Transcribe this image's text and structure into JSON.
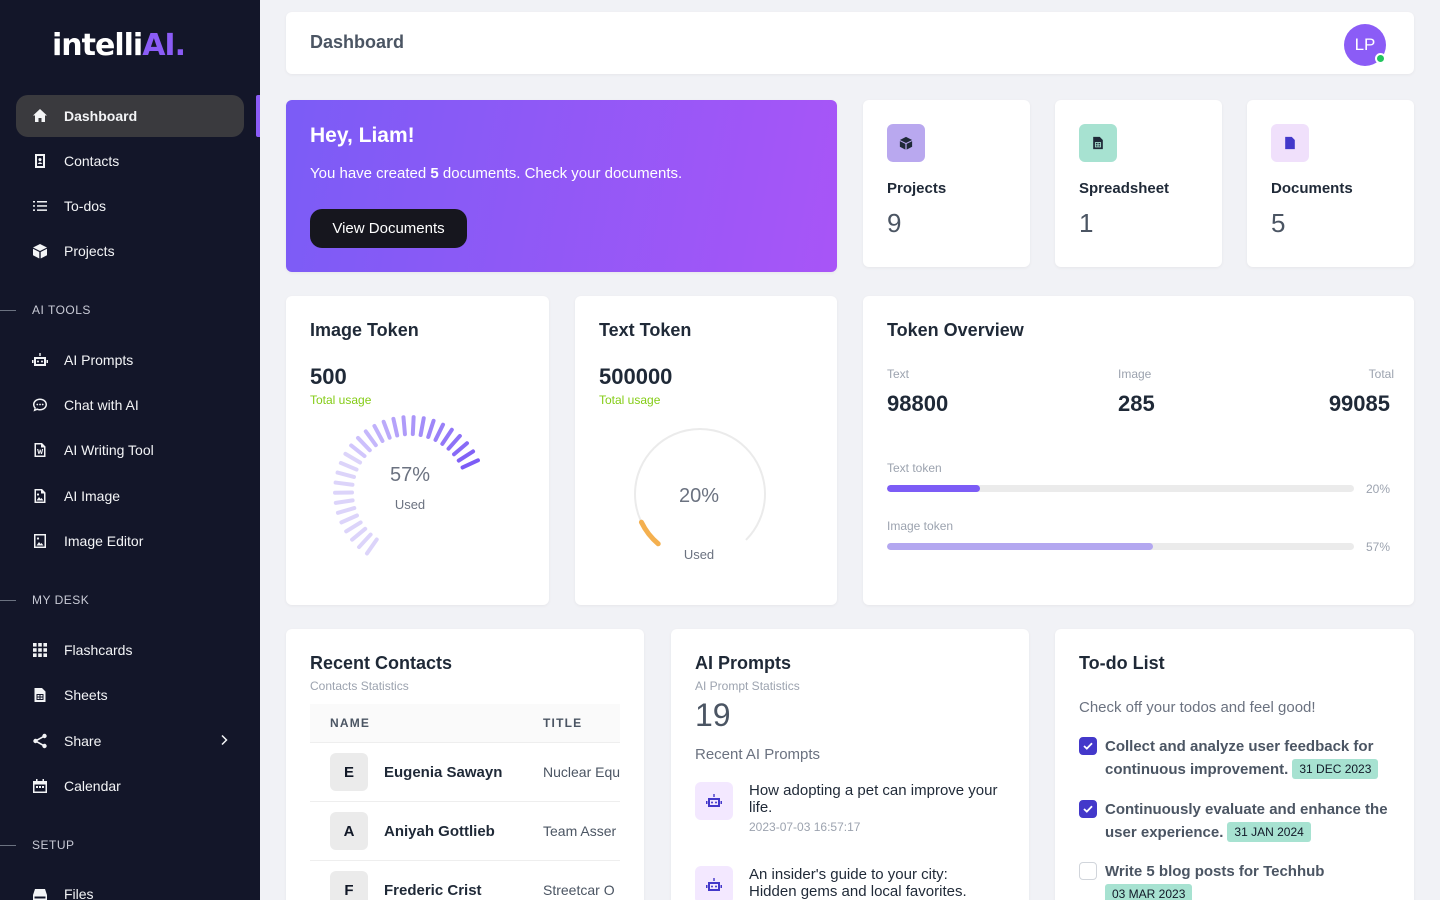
{
  "app": {
    "logo_main": "intelli",
    "logo_accent": "AI."
  },
  "sidebar": {
    "items": [
      {
        "label": "Dashboard",
        "icon": "home-icon"
      },
      {
        "label": "Contacts",
        "icon": "contact-book-icon"
      },
      {
        "label": "To-dos",
        "icon": "list-icon"
      },
      {
        "label": "Projects",
        "icon": "cube-icon"
      }
    ],
    "ai_tools_heading": "AI TOOLS",
    "ai_tools": [
      {
        "label": "AI Prompts",
        "icon": "robot-icon"
      },
      {
        "label": "Chat with AI",
        "icon": "chat-bubble-icon"
      },
      {
        "label": "AI Writing Tool",
        "icon": "word-document-icon"
      },
      {
        "label": "AI Image",
        "icon": "image-file-icon"
      },
      {
        "label": "Image Editor",
        "icon": "image-edit-icon"
      }
    ],
    "my_desk_heading": "MY DESK",
    "my_desk": [
      {
        "label": "Flashcards",
        "icon": "grid-icon"
      },
      {
        "label": "Sheets",
        "icon": "spreadsheet-icon"
      },
      {
        "label": "Share",
        "icon": "share-icon"
      },
      {
        "label": "Calendar",
        "icon": "calendar-icon"
      }
    ],
    "setup_heading": "SETUP",
    "setup": [
      {
        "label": "Files",
        "icon": "drive-icon"
      }
    ]
  },
  "header": {
    "title": "Dashboard",
    "avatar_initials": "LP"
  },
  "hero": {
    "greeting": "Hey, Liam!",
    "msg_prefix": "You have created ",
    "msg_count": "5",
    "msg_suffix": " documents. Check your documents.",
    "button": "View Documents"
  },
  "stats": [
    {
      "label": "Projects",
      "value": "9",
      "icon": "cube-icon",
      "color": "#b9a8ef"
    },
    {
      "label": "Spreadsheet",
      "value": "1",
      "icon": "spreadsheet-icon",
      "color": "#a7e2d1"
    },
    {
      "label": "Documents",
      "value": "5",
      "icon": "document-icon",
      "color": "#f0e0fb"
    }
  ],
  "image_token": {
    "title": "Image Token",
    "value": "500",
    "usage_label": "Total usage",
    "percent": 57,
    "percent_label": "57%",
    "used_label": "Used"
  },
  "text_token": {
    "title": "Text Token",
    "value": "500000",
    "usage_label": "Total usage",
    "percent": 20,
    "percent_label": "20%",
    "used_label": "Used"
  },
  "token_overview": {
    "title": "Token Overview",
    "cols": [
      {
        "label": "Text",
        "value": "98800"
      },
      {
        "label": "Image",
        "value": "285"
      },
      {
        "label": "Total",
        "value": "99085"
      }
    ],
    "bars": [
      {
        "label": "Text token",
        "percent": 20,
        "percent_label": "20%",
        "color": "#7c5cf6"
      },
      {
        "label": "Image token",
        "percent": 57,
        "percent_label": "57%",
        "color": "#b3a7f0"
      }
    ]
  },
  "contacts": {
    "title": "Recent Contacts",
    "subtitle": "Contacts Statistics",
    "headers": [
      "NAME",
      "TITLE"
    ],
    "rows": [
      {
        "initial": "E",
        "name": "Eugenia Sawayn",
        "title": "Nuclear Equ"
      },
      {
        "initial": "A",
        "name": "Aniyah Gottlieb",
        "title": "Team Asser"
      },
      {
        "initial": "F",
        "name": "Frederic Crist",
        "title": "Streetcar O"
      }
    ]
  },
  "prompts": {
    "title": "AI Prompts",
    "subtitle": "AI Prompt Statistics",
    "count": "19",
    "recent_label": "Recent AI Prompts",
    "items": [
      {
        "title": "How adopting a pet can improve your life.",
        "date": "2023-07-03 16:57:17",
        "icon": "robot-icon"
      },
      {
        "title": "An insider's guide to your city: Hidden gems and local favorites.",
        "date": "",
        "icon": "robot-icon"
      }
    ]
  },
  "todos": {
    "title": "To-do List",
    "intro": "Check off your todos and feel good!",
    "items": [
      {
        "text": "Collect and analyze user feedback for continuous improvement.",
        "date": "31 DEC 2023",
        "checked": true
      },
      {
        "text": "Continuously evaluate and enhance the user experience.",
        "date": "31 JAN 2024",
        "checked": true
      },
      {
        "text": "Write 5 blog posts for Techhub",
        "date": "03 MAR 2023",
        "checked": false
      }
    ]
  }
}
